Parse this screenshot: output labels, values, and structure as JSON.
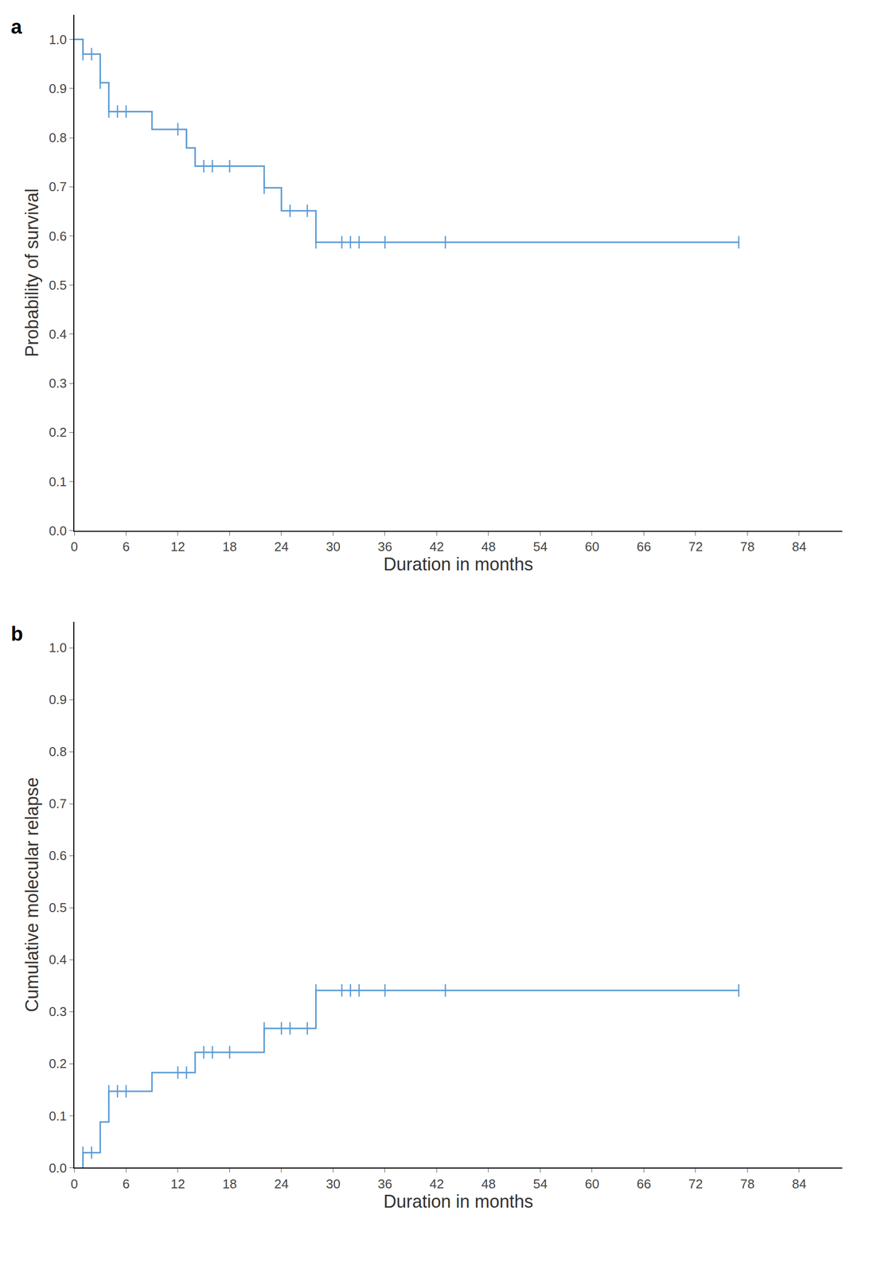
{
  "chart_data": [
    {
      "type": "step",
      "title": "a",
      "x_label": "Duration in months",
      "y_label": "Probability of survival",
      "color": "#5b9bd5",
      "marker": "vertical-tick",
      "grid": false,
      "x": [
        0,
        1,
        3,
        4,
        9,
        13,
        14,
        22,
        24,
        28,
        77
      ],
      "values": [
        1.0,
        0.97,
        0.912,
        0.853,
        0.817,
        0.779,
        0.742,
        0.698,
        0.651,
        0.587,
        0.587
      ],
      "censored_x": [
        1,
        2,
        3,
        4,
        5,
        6,
        12,
        15,
        16,
        18,
        22,
        25,
        27,
        28,
        31,
        32,
        33,
        36,
        43,
        77
      ],
      "censored_values": [
        0.97,
        0.97,
        0.912,
        0.853,
        0.853,
        0.853,
        0.817,
        0.742,
        0.742,
        0.742,
        0.698,
        0.651,
        0.651,
        0.587,
        0.587,
        0.587,
        0.587,
        0.587,
        0.587,
        0.587
      ],
      "xlim": [
        0,
        89
      ],
      "xticks": [
        0,
        6,
        12,
        18,
        24,
        30,
        36,
        42,
        48,
        54,
        60,
        66,
        72,
        78,
        84
      ],
      "ylim": [
        0,
        1.05
      ],
      "yticks": [
        {
          "value": 0,
          "label": "0.0"
        },
        0.1,
        0.2,
        0.3,
        0.4,
        0.5,
        0.6,
        0.7,
        0.8,
        0.9,
        {
          "value": 1,
          "label": "1.0"
        }
      ]
    },
    {
      "type": "step",
      "title": "b",
      "x_label": "Duration in months",
      "y_label": "Cumulative molecular relapse",
      "color": "#5b9bd5",
      "marker": "vertical-tick",
      "grid": false,
      "x": [
        1,
        1,
        3,
        4,
        9,
        14,
        22,
        28,
        77
      ],
      "values": [
        0,
        0.029,
        0.088,
        0.147,
        0.183,
        0.222,
        0.268,
        0.341,
        0.341
      ],
      "censored_x": [
        1,
        2,
        4,
        5,
        6,
        12,
        13,
        15,
        16,
        18,
        22,
        24,
        25,
        27,
        28,
        31,
        32,
        33,
        36,
        43,
        77
      ],
      "censored_values": [
        0.029,
        0.029,
        0.147,
        0.147,
        0.147,
        0.183,
        0.183,
        0.222,
        0.222,
        0.222,
        0.268,
        0.268,
        0.268,
        0.268,
        0.341,
        0.341,
        0.341,
        0.341,
        0.341,
        0.341,
        0.341
      ],
      "xlim": [
        0,
        89
      ],
      "xticks": [
        0,
        6,
        12,
        18,
        24,
        30,
        36,
        42,
        48,
        54,
        60,
        66,
        72,
        78,
        84
      ],
      "ylim": [
        0,
        1.05
      ],
      "yticks": [
        {
          "value": 0,
          "label": "0.0"
        },
        0.1,
        0.2,
        0.3,
        0.4,
        0.5,
        0.6,
        0.7,
        0.8,
        0.9,
        {
          "value": 1,
          "label": "1.0"
        }
      ]
    }
  ]
}
